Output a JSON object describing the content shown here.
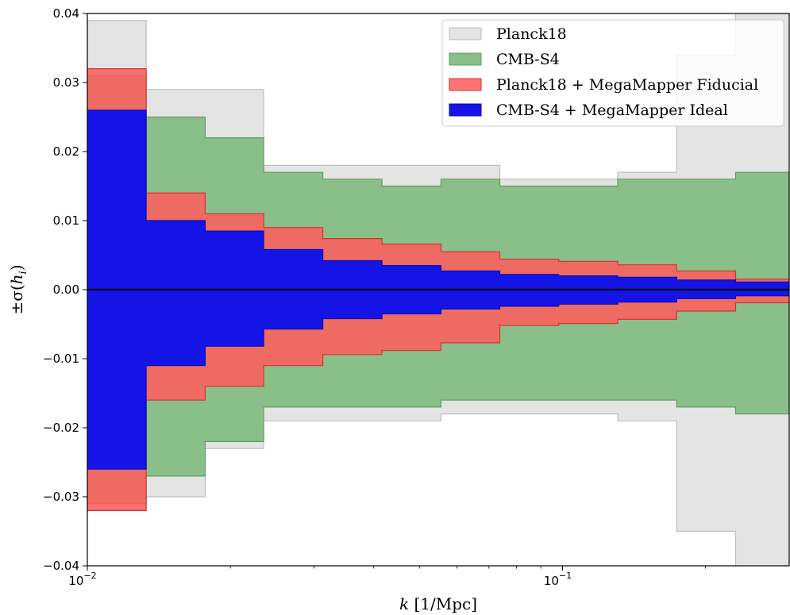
{
  "chart_data": {
    "type": "area",
    "x_scale": "log",
    "xlim": [
      0.01,
      0.3
    ],
    "ylim": [
      -0.04,
      0.04
    ],
    "xlabel_main": "k",
    "xlabel_unit": " [1/Mpc]",
    "ylabel_prefix": "±σ(",
    "ylabel_var": "h",
    "ylabel_sub": "i",
    "ylabel_suffix": ")",
    "x_ticks": [
      {
        "value": 0.01,
        "base": "10",
        "exp": "−2"
      },
      {
        "value": 0.1,
        "base": "10",
        "exp": "−1"
      }
    ],
    "y_ticks": [
      {
        "value": 0.04,
        "label": "0.04"
      },
      {
        "value": 0.03,
        "label": "0.03"
      },
      {
        "value": 0.02,
        "label": "0.02"
      },
      {
        "value": 0.01,
        "label": "0.01"
      },
      {
        "value": 0.0,
        "label": "0.00"
      },
      {
        "value": -0.01,
        "label": "−0.01"
      },
      {
        "value": -0.02,
        "label": "−0.02"
      },
      {
        "value": -0.03,
        "label": "−0.03"
      },
      {
        "value": -0.04,
        "label": "−0.04"
      }
    ],
    "bin_edges": [
      0.01,
      0.0133,
      0.0177,
      0.0235,
      0.0313,
      0.0417,
      0.0555,
      0.0738,
      0.0982,
      0.1307,
      0.1739,
      0.2314,
      0.3
    ],
    "legend_position": "top-right",
    "series": [
      {
        "name": "Planck18",
        "color": "#d9d9d9",
        "edge_color": "#bdbdbd",
        "opacity": 0.7,
        "upper": [
          0.039,
          0.029,
          0.029,
          0.018,
          0.018,
          0.018,
          0.018,
          0.016,
          0.016,
          0.017,
          0.034,
          0.045
        ],
        "lower": [
          -0.032,
          -0.03,
          -0.023,
          -0.019,
          -0.019,
          -0.019,
          -0.018,
          -0.018,
          -0.018,
          -0.019,
          -0.035,
          -0.042
        ]
      },
      {
        "name": "CMB-S4",
        "color": "#8abf8a",
        "edge_color": "#5e9e5e",
        "opacity": 1,
        "upper": [
          0.031,
          0.025,
          0.022,
          0.017,
          0.016,
          0.015,
          0.016,
          0.015,
          0.015,
          0.016,
          0.016,
          0.017
        ],
        "lower": [
          -0.031,
          -0.027,
          -0.022,
          -0.017,
          -0.017,
          -0.017,
          -0.016,
          -0.016,
          -0.016,
          -0.016,
          -0.017,
          -0.018
        ]
      },
      {
        "name": "Planck18 + MegaMapper Fiducial",
        "color": "#ff5c5c",
        "edge_color": "#d93030",
        "opacity": 0.85,
        "upper": [
          0.032,
          0.014,
          0.011,
          0.009,
          0.0074,
          0.0066,
          0.0055,
          0.0044,
          0.0041,
          0.0036,
          0.0027,
          0.0015
        ],
        "lower": [
          -0.032,
          -0.016,
          -0.014,
          -0.011,
          -0.0094,
          -0.0088,
          -0.0077,
          -0.0052,
          -0.0049,
          -0.0043,
          -0.0031,
          -0.0019
        ]
      },
      {
        "name": "CMB-S4 + MegaMapper Ideal",
        "color": "#1414e6",
        "edge_color": "#0a0ab4",
        "opacity": 1,
        "upper": [
          0.026,
          0.01,
          0.0085,
          0.0058,
          0.0042,
          0.0035,
          0.0027,
          0.0022,
          0.002,
          0.0018,
          0.0014,
          0.0011
        ],
        "lower": [
          -0.026,
          -0.011,
          -0.0082,
          -0.0057,
          -0.0042,
          -0.0035,
          -0.0028,
          -0.0024,
          -0.0021,
          -0.0018,
          -0.0013,
          -0.0009
        ]
      }
    ]
  }
}
